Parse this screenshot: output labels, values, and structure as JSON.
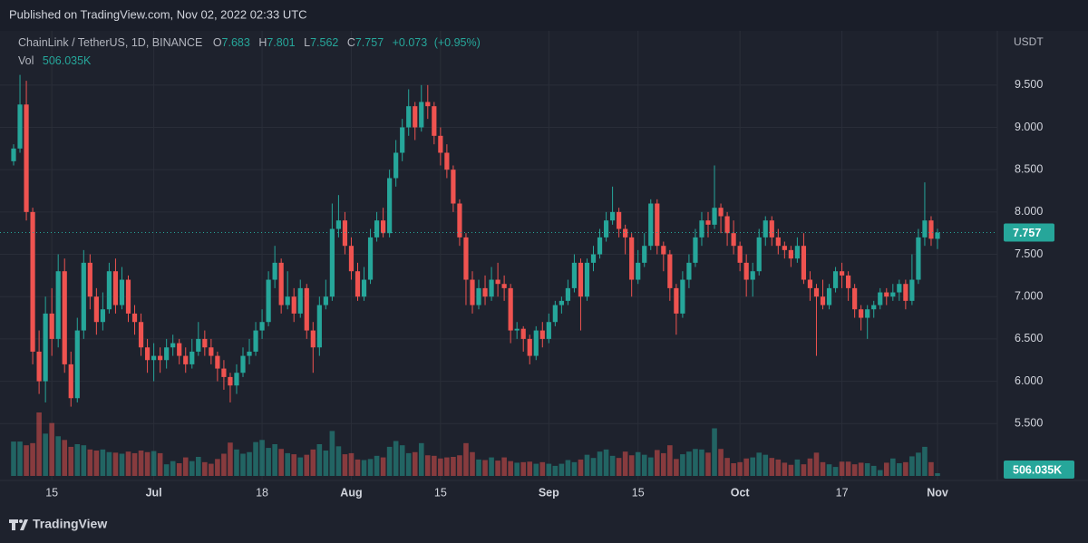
{
  "chart_data": {
    "type": "candlestick",
    "publisher": "Published on TradingView.com, Nov 02, 2022 02:33 UTC",
    "symbol": "ChainLink / TetherUS, 1D, BINANCE",
    "ohlc_letters": [
      "O",
      "H",
      "L",
      "C"
    ],
    "change": {
      "value": 0.073,
      "label": "+0.073"
    },
    "change_pct": {
      "value": 0.95,
      "label": "(+0.95%)"
    },
    "volume_title": "Vol",
    "volume_label": "506.035K",
    "y_axis_label": "USDT",
    "brand": "TradingView",
    "up_color": "#26a69a",
    "down_color": "#ef5350",
    "grid": true,
    "ylim": [
      4.86,
      10.13
    ],
    "yticks": [
      {
        "value": 5.5,
        "label": "5.500"
      },
      {
        "value": 6,
        "label": "6.000"
      },
      {
        "value": 6.5,
        "label": "6.500"
      },
      {
        "value": 7,
        "label": "7.000"
      },
      {
        "value": 7.5,
        "label": "7.500"
      },
      {
        "value": 8,
        "label": "8.000"
      },
      {
        "value": 8.5,
        "label": "8.500"
      },
      {
        "value": 9,
        "label": "9.000"
      },
      {
        "value": 9.5,
        "label": "9.500"
      }
    ],
    "xticks": [
      {
        "value": 6,
        "label": "15"
      },
      {
        "value": 22,
        "label": "Jul"
      },
      {
        "value": 39,
        "label": "18"
      },
      {
        "value": 53,
        "label": "Aug"
      },
      {
        "value": 67,
        "label": "15"
      },
      {
        "value": 84,
        "label": "Sep"
      },
      {
        "value": 98,
        "label": "15"
      },
      {
        "value": 114,
        "label": "Oct"
      },
      {
        "value": 130,
        "label": "17"
      },
      {
        "value": 145,
        "label": "Nov"
      }
    ],
    "open": [
      8.6,
      8.75,
      9.27,
      8.0,
      6.35,
      6.0,
      6.8,
      6.5,
      7.3,
      6.2,
      5.8,
      6.6,
      7.4,
      7.0,
      6.7,
      6.85,
      7.3,
      6.9,
      7.2,
      6.8,
      6.7,
      6.4,
      6.25,
      6.3,
      6.25,
      6.4,
      6.45,
      6.3,
      6.2,
      6.35,
      6.5,
      6.4,
      6.3,
      6.15,
      6.05,
      5.95,
      6.1,
      6.3,
      6.35,
      6.6,
      6.7,
      7.2,
      7.4,
      6.9,
      7.0,
      6.8,
      7.1,
      6.6,
      6.4,
      6.9,
      7.0,
      7.8,
      7.9,
      7.6,
      7.3,
      7.0,
      7.2,
      7.7,
      7.9,
      7.75,
      8.4,
      8.7,
      9.0,
      9.25,
      9.0,
      9.3,
      9.25,
      8.9,
      8.7,
      8.5,
      8.1,
      7.7,
      7.2,
      6.9,
      7.1,
      7.0,
      7.2,
      7.15,
      7.1,
      6.6,
      6.62,
      6.5,
      6.3,
      6.6,
      6.5,
      6.7,
      6.9,
      6.95,
      7.1,
      7.4,
      7.0,
      7.4,
      7.5,
      7.7,
      7.9,
      8.0,
      7.8,
      7.7,
      7.2,
      7.4,
      7.6,
      8.1,
      7.6,
      7.5,
      7.1,
      6.8,
      7.2,
      7.4,
      7.7,
      7.9,
      7.85,
      8.05,
      7.95,
      7.75,
      7.6,
      7.4,
      7.2,
      7.3,
      7.7,
      7.9,
      7.7,
      7.6,
      7.55,
      7.45,
      7.6,
      7.2,
      7.1,
      7.0,
      6.9,
      7.1,
      7.3,
      7.25,
      7.1,
      6.85,
      6.75,
      6.85,
      6.9,
      7.05,
      7.0,
      7.05,
      7.15,
      6.95,
      7.2,
      7.7,
      7.9,
      7.683
    ],
    "high": [
      8.8,
      9.62,
      9.55,
      8.05,
      6.6,
      7.0,
      7.1,
      7.5,
      7.45,
      6.35,
      6.75,
      7.55,
      7.5,
      7.1,
      7.05,
      7.4,
      7.45,
      7.35,
      7.25,
      6.9,
      6.8,
      6.5,
      6.45,
      6.4,
      6.5,
      6.55,
      6.5,
      6.4,
      6.5,
      6.7,
      6.6,
      6.5,
      6.35,
      6.25,
      6.1,
      6.2,
      6.4,
      6.5,
      6.7,
      6.85,
      7.3,
      7.6,
      7.45,
      7.3,
      7.1,
      7.2,
      7.15,
      6.7,
      7.0,
      7.2,
      8.1,
      8.2,
      8.0,
      7.7,
      7.4,
      7.35,
      7.8,
      8.0,
      8.05,
      8.5,
      8.85,
      9.1,
      9.45,
      9.3,
      9.5,
      9.5,
      9.3,
      9.0,
      8.8,
      8.55,
      8.15,
      7.75,
      7.3,
      7.2,
      7.25,
      7.35,
      7.4,
      7.25,
      7.15,
      6.7,
      6.65,
      6.55,
      6.65,
      6.7,
      6.8,
      6.95,
      7.0,
      7.2,
      7.5,
      7.45,
      7.45,
      7.6,
      7.8,
      8.0,
      8.3,
      8.05,
      7.85,
      7.75,
      7.55,
      7.75,
      8.15,
      8.15,
      7.65,
      7.55,
      7.15,
      7.3,
      7.5,
      7.8,
      8.0,
      8.0,
      8.55,
      8.1,
      8.0,
      7.9,
      7.65,
      7.5,
      7.4,
      7.8,
      7.95,
      7.95,
      7.8,
      7.65,
      7.6,
      7.7,
      7.75,
      7.3,
      7.15,
      7.2,
      7.15,
      7.35,
      7.4,
      7.3,
      7.15,
      6.9,
      6.9,
      6.95,
      7.1,
      7.1,
      7.15,
      7.2,
      7.2,
      7.5,
      7.8,
      8.35,
      7.95,
      7.801
    ],
    "low": [
      8.55,
      8.7,
      7.9,
      6.2,
      5.85,
      5.75,
      6.3,
      6.4,
      6.1,
      5.7,
      5.75,
      6.5,
      6.85,
      6.55,
      6.6,
      6.8,
      6.8,
      6.85,
      6.7,
      6.55,
      6.3,
      6.1,
      6.0,
      6.1,
      6.15,
      6.3,
      6.2,
      6.1,
      6.15,
      6.3,
      6.3,
      6.2,
      6.0,
      5.9,
      5.75,
      5.85,
      6.05,
      6.2,
      6.3,
      6.5,
      6.65,
      7.1,
      6.8,
      6.85,
      6.7,
      6.75,
      6.5,
      6.1,
      6.3,
      6.85,
      6.95,
      7.7,
      7.5,
      7.2,
      6.95,
      6.95,
      7.15,
      7.65,
      7.7,
      7.7,
      8.3,
      8.6,
      8.9,
      8.85,
      8.95,
      9.1,
      8.8,
      8.55,
      8.4,
      8.0,
      7.6,
      6.9,
      6.8,
      6.85,
      6.9,
      6.95,
      7.0,
      6.95,
      6.45,
      6.5,
      6.35,
      6.2,
      6.25,
      6.4,
      6.45,
      6.65,
      6.8,
      6.9,
      7.05,
      6.6,
      6.95,
      7.3,
      7.45,
      7.65,
      7.85,
      7.7,
      7.5,
      7.0,
      7.15,
      7.35,
      7.55,
      7.5,
      7.3,
      6.95,
      6.55,
      6.75,
      7.1,
      7.35,
      7.6,
      7.7,
      7.8,
      7.75,
      7.6,
      7.5,
      7.3,
      7.0,
      7.0,
      7.25,
      7.6,
      7.6,
      7.5,
      7.45,
      7.35,
      7.4,
      7.15,
      6.95,
      6.3,
      6.85,
      6.85,
      7.05,
      7.1,
      6.95,
      6.75,
      6.6,
      6.5,
      6.75,
      6.85,
      6.9,
      6.95,
      6.95,
      6.85,
      6.9,
      7.15,
      7.6,
      7.6,
      7.562
    ],
    "close": [
      8.75,
      9.27,
      8.0,
      6.35,
      6.0,
      6.8,
      6.5,
      7.3,
      6.2,
      5.8,
      6.6,
      7.4,
      7.0,
      6.7,
      6.85,
      7.3,
      6.9,
      7.2,
      6.8,
      6.7,
      6.4,
      6.25,
      6.3,
      6.25,
      6.4,
      6.45,
      6.3,
      6.2,
      6.35,
      6.5,
      6.4,
      6.3,
      6.15,
      6.05,
      5.95,
      6.1,
      6.3,
      6.35,
      6.6,
      6.7,
      7.2,
      7.4,
      6.9,
      7.0,
      6.8,
      7.1,
      6.6,
      6.4,
      6.9,
      7.0,
      7.8,
      7.9,
      7.6,
      7.3,
      7.0,
      7.2,
      7.7,
      7.9,
      7.75,
      8.4,
      8.7,
      9.0,
      9.25,
      9.0,
      9.3,
      9.25,
      8.9,
      8.7,
      8.5,
      8.1,
      7.7,
      7.2,
      6.9,
      7.1,
      7.0,
      7.2,
      7.15,
      7.1,
      6.6,
      6.62,
      6.5,
      6.3,
      6.6,
      6.5,
      6.7,
      6.9,
      6.95,
      7.1,
      7.4,
      7.0,
      7.4,
      7.5,
      7.7,
      7.9,
      8.0,
      7.8,
      7.7,
      7.2,
      7.4,
      7.6,
      8.1,
      7.6,
      7.5,
      7.1,
      6.8,
      7.2,
      7.4,
      7.7,
      7.9,
      7.85,
      8.05,
      7.95,
      7.75,
      7.6,
      7.4,
      7.2,
      7.3,
      7.7,
      7.9,
      7.7,
      7.6,
      7.55,
      7.45,
      7.6,
      7.2,
      7.1,
      7.0,
      6.9,
      7.1,
      7.3,
      7.25,
      7.1,
      6.85,
      6.75,
      6.85,
      6.9,
      7.05,
      7.0,
      7.05,
      7.15,
      6.95,
      7.2,
      7.7,
      7.9,
      7.684,
      7.757
    ],
    "volume": [
      6500000.0,
      6500000.0,
      5800000.0,
      6200000.0,
      12000000.0,
      8000000.0,
      10000000.0,
      7500000.0,
      6800000.0,
      5500000.0,
      6000000.0,
      5800000.0,
      5000000.0,
      4800000.0,
      5000000.0,
      4500000.0,
      4400000.0,
      4200000.0,
      4600000.0,
      4300000.0,
      4800000.0,
      4500000.0,
      4700000.0,
      4300000.0,
      2200000.0,
      2800000.0,
      2400000.0,
      3500000.0,
      2800000.0,
      3600000.0,
      2600000.0,
      2300000.0,
      3200000.0,
      4200000.0,
      6300000.0,
      5000000.0,
      4200000.0,
      4500000.0,
      6400000.0,
      6800000.0,
      5300000.0,
      6000000.0,
      5100000.0,
      4300000.0,
      4100000.0,
      3500000.0,
      4000000.0,
      5000000.0,
      6000000.0,
      4800000.0,
      8500000.0,
      5600000.0,
      4100000.0,
      4300000.0,
      3100000.0,
      3000000.0,
      3200000.0,
      3800000.0,
      3500000.0,
      5500000.0,
      6600000.0,
      5800000.0,
      4300000.0,
      4500000.0,
      6200000.0,
      3900000.0,
      3800000.0,
      3300000.0,
      3500000.0,
      3600000.0,
      3900000.0,
      6200000.0,
      4500000.0,
      3100000.0,
      3000000.0,
      3500000.0,
      2900000.0,
      3500000.0,
      2800000.0,
      2500000.0,
      2600000.0,
      2700000.0,
      2300000.0,
      2600000.0,
      2300000.0,
      1900000.0,
      2300000.0,
      3000000.0,
      2600000.0,
      3100000.0,
      4000000.0,
      3400000.0,
      4600000.0,
      5000000.0,
      3800000.0,
      3400000.0,
      4600000.0,
      3900000.0,
      4500000.0,
      4000000.0,
      3500000.0,
      4900000.0,
      4300000.0,
      5800000.0,
      3200000.0,
      4100000.0,
      4600000.0,
      5100000.0,
      5000000.0,
      4400000.0,
      9000000.0,
      5100000.0,
      3400000.0,
      2400000.0,
      2600000.0,
      3300000.0,
      3500000.0,
      4400000.0,
      4000000.0,
      3400000.0,
      3100000.0,
      2500000.0,
      2100000.0,
      3100000.0,
      2200000.0,
      3300000.0,
      4400000.0,
      2600000.0,
      2200000.0,
      1700000.0,
      2700000.0,
      2700000.0,
      2200000.0,
      2500000.0,
      2400000.0,
      1900000.0,
      1100000.0,
      2500000.0,
      3300000.0,
      2400000.0,
      2600000.0,
      3700000.0,
      4400000.0,
      5500000.0,
      2600000.0,
      506035
    ]
  }
}
